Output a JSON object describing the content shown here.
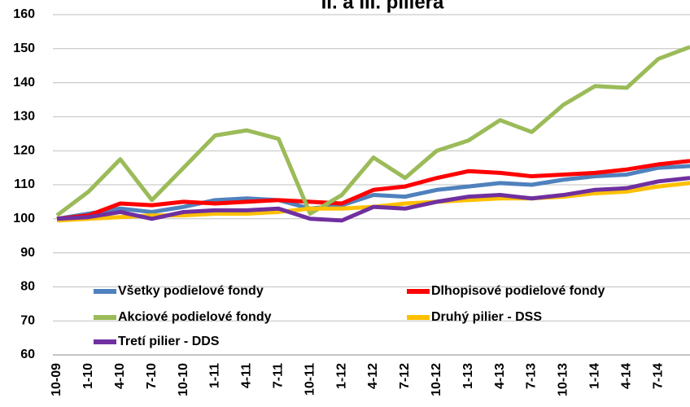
{
  "chart_data": {
    "type": "line",
    "title": "II. a III. piliera",
    "categories": [
      "10-09",
      "1-10",
      "4-10",
      "7-10",
      "10-10",
      "1-11",
      "4-11",
      "7-11",
      "10-11",
      "1-12",
      "4-12",
      "7-12",
      "10-12",
      "1-13",
      "4-13",
      "7-13",
      "10-13",
      "1-14",
      "4-14",
      "7-14",
      null
    ],
    "series": [
      {
        "name": "Všetky podielové fondy",
        "color": "#4f81bd",
        "values": [
          100,
          101.5,
          103,
          102,
          103.5,
          105.5,
          106,
          105.5,
          103,
          104,
          107,
          106.5,
          108.5,
          109.5,
          110.5,
          110,
          111.5,
          112.5,
          113,
          115,
          115.5
        ]
      },
      {
        "name": "Dlhopisové podielové fondy",
        "color": "#ff0000",
        "values": [
          100,
          101,
          104.5,
          104,
          105,
          104.5,
          105,
          105.5,
          105,
          104.5,
          108.5,
          109.5,
          112,
          114,
          113.5,
          112.5,
          113,
          113.5,
          114.5,
          116,
          117
        ]
      },
      {
        "name": "Akciové podielové fondy",
        "color": "#9bbb59",
        "values": [
          101,
          108,
          117.5,
          105.5,
          115,
          124.5,
          126,
          123.5,
          101.5,
          107,
          118,
          112,
          120,
          123,
          129,
          125.5,
          133.5,
          139,
          138.5,
          147,
          150.5
        ]
      },
      {
        "name": "Druhý pilier - DSS",
        "color": "#ffc000",
        "values": [
          99.5,
          100,
          100.5,
          101,
          101,
          101.5,
          101.5,
          102,
          103,
          103,
          103.5,
          104.5,
          105,
          105.5,
          106,
          106,
          106.5,
          107.5,
          108,
          109.5,
          110.5
        ]
      },
      {
        "name": "Tretí pilier - DDS",
        "color": "#7030a0",
        "values": [
          100,
          100.5,
          102,
          100,
          102,
          102.5,
          102.5,
          103,
          100,
          99.5,
          103.5,
          103,
          105,
          106.5,
          107,
          106,
          107,
          108.5,
          109,
          111,
          112
        ]
      }
    ],
    "ylim": [
      60,
      160
    ],
    "yticks": [
      60,
      70,
      80,
      90,
      100,
      110,
      120,
      130,
      140,
      150,
      160
    ],
    "grid": true
  }
}
